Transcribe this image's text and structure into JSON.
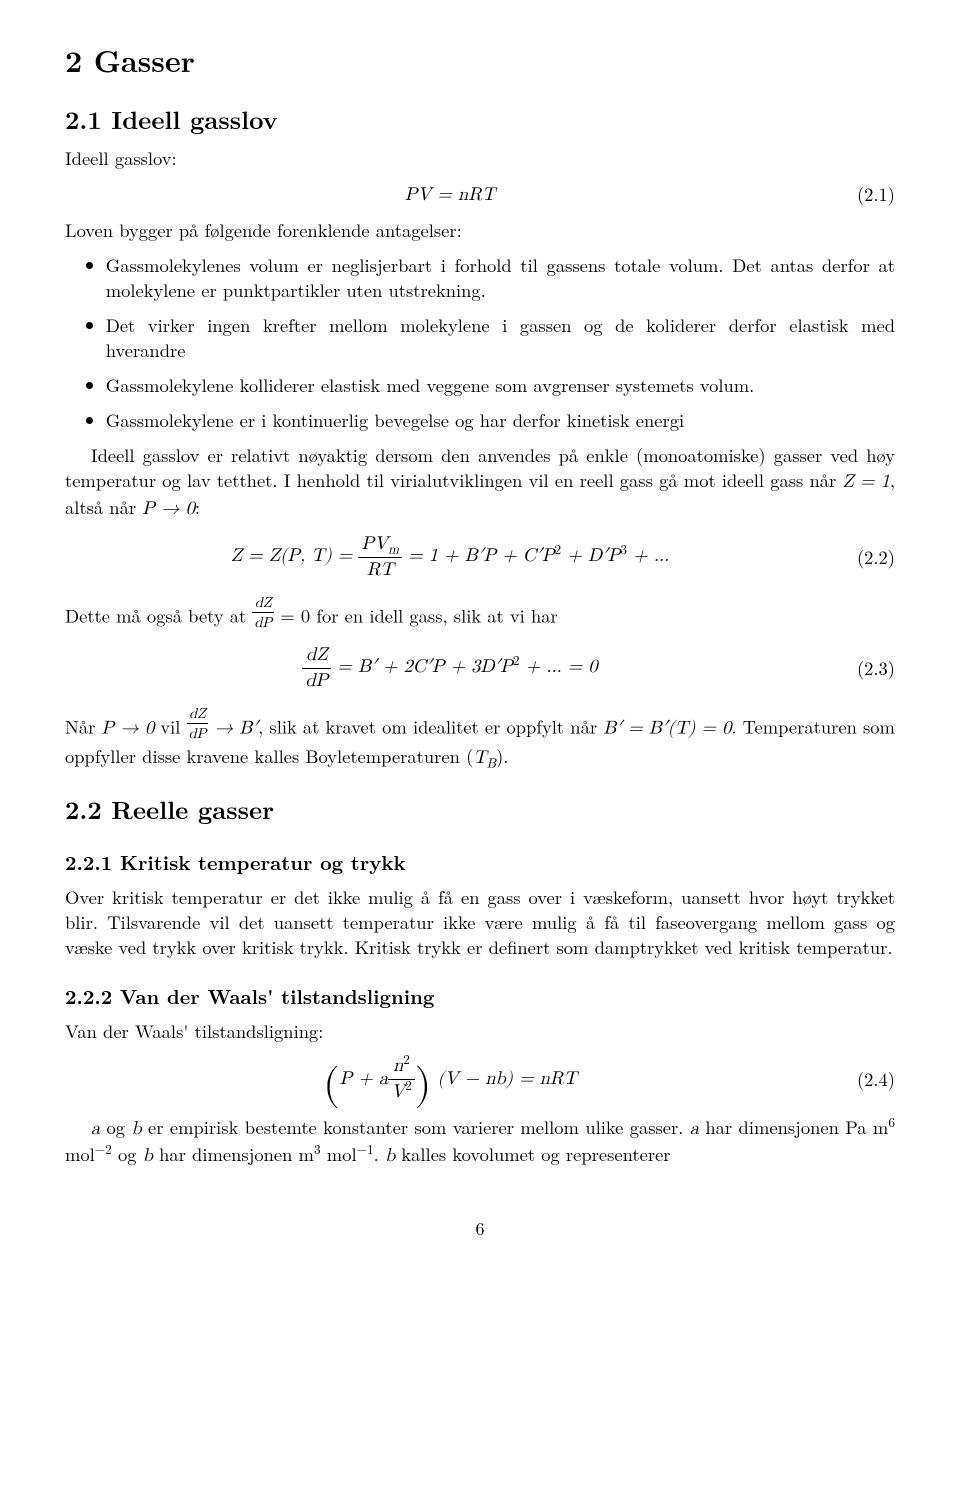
{
  "h1": "2   Gasser",
  "s21": {
    "title": "2.1   Ideell gasslov",
    "intro": "Ideell gasslov:",
    "eq1": {
      "body": "PV = nRT",
      "num": "(2.1)"
    },
    "lead": "Loven bygger på følgende forenklende antagelser:",
    "bullets": [
      "Gassmolekylenes volum er neglisjerbart i forhold til gassens totale volum. Det antas derfor at molekylene er punktpartikler uten utstrekning.",
      "Det virker ingen krefter mellom molekylene i gassen og de koliderer derfor elastisk med hverandre",
      "Gassmolekylene kolliderer elastisk med veggene som avgrenser systemets volum.",
      "Gassmolekylene er i kontinuerlig bevegelse og har derfor kinetisk energi"
    ],
    "p1a": "Ideell gasslov er relativt nøyaktig dersom den anvendes på enkle (monoatomiske) gasser ved høy temperatur og lav tetthet. I henhold til virialutviklingen vil en reell gass gå mot ideell gass når ",
    "p1b": ", altså når ",
    "p1c": ":",
    "z_eq_1": "Z = 1",
    "p_to_0": "P → 0",
    "eq2": {
      "lhs": "Z = Z(P, T) = ",
      "frac_num": "PV",
      "frac_num_sub": "m",
      "frac_den": "RT",
      "rhs": " = 1 + B′P + C′P",
      "sq": "2",
      "plus": " + D′P",
      "cu": "3",
      "tail": " + ...",
      "num": "(2.2)"
    },
    "p2a": "Dette må også bety at ",
    "p2b": " = 0 for en idell gass, slik at vi har",
    "dZdP_num": "dZ",
    "dZdP_den": "dP",
    "eq3": {
      "frac_num": "dZ",
      "frac_den": "dP",
      "rhs": " = B′ + 2C′P + 3D′P",
      "sq": "2",
      "tail": " + ... = 0",
      "num": "(2.3)"
    },
    "p3a": "Når ",
    "p3b": " vil ",
    "p3c": ", slik at kravet om idealitet er oppfylt når ",
    "p3d": ". Temperaturen som oppfyller disse kravene kalles Boyletemperaturen (",
    "p3e": ").",
    "P0": "P → 0",
    "toB": " → B′",
    "Bcond": "B′ = B′(T) = 0",
    "TB": "T",
    "TBsub": "B"
  },
  "s22": {
    "title": "2.2   Reelle gasser",
    "s221": {
      "title": "2.2.1   Kritisk temperatur og trykk",
      "body": "Over kritisk temperatur er det ikke mulig å få en gass over i væskeform, uansett hvor høyt trykket blir. Tilsvarende vil det uansett temperatur ikke være mulig å få til faseovergang mellom gass og væske ved trykk over kritisk trykk. Kritisk trykk er definert som damptrykket ved kritisk temperatur."
    },
    "s222": {
      "title": "2.2.2   Van der Waals' tilstandsligning",
      "intro": "Van der Waals' tilstandsligning:",
      "eq4": {
        "p1": "P + a",
        "frac_num": "n",
        "frac_num_sup": "2",
        "frac_den": "V",
        "frac_den_sup": "2",
        "mid": " (V − nb) = nRT",
        "num": "(2.4)"
      },
      "tail_a": "a",
      "tail_b": " og ",
      "tail_c": "b",
      "tail_d": " er empirisk bestemte konstanter som varierer mellom ulike gasser. ",
      "tail_e": "a",
      "tail_f": " har dimensjonen Pa m",
      "u6": "6",
      "umol": " mol",
      "neg2": "−2",
      "tail_g": " og ",
      "tail_h": "b",
      "tail_i": " har dimensjonen m",
      "u3": "3",
      "neg1": "−1",
      "tail_j": ". ",
      "tail_k": "b",
      "tail_l": " kalles kovolumet og representerer"
    }
  },
  "pagenum": "6"
}
